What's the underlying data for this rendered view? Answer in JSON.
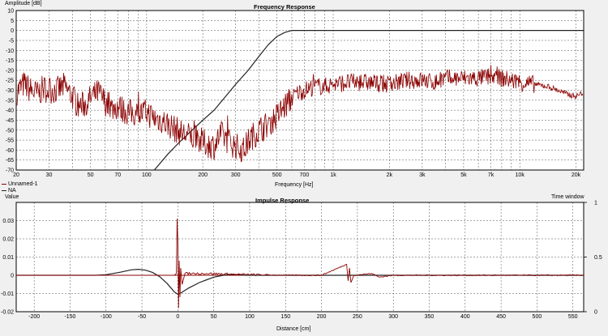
{
  "top": {
    "title": "Frequency Response",
    "ylabel": "Amplitude [dB]",
    "xlabel": "Frequency [Hz]",
    "legend": [
      {
        "name": "Unnamed-1",
        "color": "#8b0000"
      },
      {
        "name": "NA",
        "color": "#222222"
      }
    ]
  },
  "bottom": {
    "title": "Impulse Response",
    "ylabel": "Value",
    "xlabel": "Distance [cm]",
    "right_label": "Time window"
  },
  "colors": {
    "measurement": "#8b0000",
    "window": "#222222",
    "grid": "#000000",
    "plot_bg": "#ffffff",
    "frame_bg": "#f0f0f0"
  },
  "chart_data": [
    {
      "type": "line",
      "title": "Frequency Response",
      "xlabel": "Frequency [Hz]",
      "ylabel": "Amplitude [dB]",
      "x_scale": "log",
      "xlim": [
        20,
        22000
      ],
      "ylim": [
        -70,
        10
      ],
      "xticks": [
        20,
        30,
        50,
        70,
        100,
        200,
        300,
        500,
        700,
        1000,
        2000,
        3000,
        5000,
        7000,
        10000,
        20000
      ],
      "xtick_labels": [
        "20",
        "30",
        "50",
        "70",
        "100",
        "200",
        "300",
        "500",
        "700",
        "1k",
        "2k",
        "3k",
        "5k",
        "7k",
        "10k",
        "20k"
      ],
      "yticks": [
        10,
        5,
        0,
        -5,
        -10,
        -15,
        -20,
        -25,
        -30,
        -35,
        -40,
        -45,
        -50,
        -55,
        -60,
        -65,
        -70
      ],
      "grid": true,
      "legend_position": "bottom-left",
      "series": [
        {
          "name": "Unnamed-1",
          "x": [
            20,
            22,
            24,
            26,
            28,
            30,
            33,
            36,
            40,
            43,
            47,
            50,
            55,
            60,
            65,
            70,
            75,
            80,
            90,
            100,
            110,
            120,
            135,
            150,
            170,
            190,
            210,
            230,
            250,
            270,
            300,
            330,
            360,
            400,
            450,
            500,
            550,
            600,
            650,
            700,
            800,
            900,
            1000,
            1200,
            1500,
            2000,
            2500,
            3000,
            3500,
            4000,
            5000,
            6000,
            7000,
            8000,
            10000,
            12000,
            14000,
            16000,
            18000,
            20000,
            22000
          ],
          "y": [
            -31,
            -27,
            -30,
            -32,
            -29,
            -30,
            -30,
            -28,
            -33,
            -38,
            -37,
            -34,
            -31,
            -36,
            -39,
            -38,
            -40,
            -41,
            -42,
            -41,
            -44,
            -45,
            -48,
            -51,
            -53,
            -55,
            -57,
            -58,
            -52,
            -55,
            -58,
            -60,
            -54,
            -50,
            -47,
            -43,
            -38,
            -34,
            -31,
            -30,
            -28,
            -28,
            -27,
            -26,
            -26,
            -27,
            -25,
            -25,
            -26,
            -24,
            -24,
            -24,
            -23,
            -24,
            -26,
            -27,
            -28,
            -30,
            -32,
            -33,
            -31
          ]
        },
        {
          "name": "NA",
          "x": [
            110,
            130,
            150,
            180,
            200,
            230,
            260,
            300,
            350,
            400,
            450,
            500,
            550,
            600,
            650,
            700,
            1000,
            2000,
            5000,
            10000,
            22000
          ],
          "y": [
            -70,
            -62,
            -56,
            -49,
            -45,
            -40,
            -34,
            -27,
            -20,
            -13,
            -7,
            -3,
            -1,
            0,
            0,
            0,
            0,
            0,
            0,
            0,
            0
          ]
        }
      ]
    },
    {
      "type": "line",
      "title": "Impulse Response",
      "xlabel": "Distance [cm]",
      "ylabel": "Value",
      "xlim": [
        -225,
        565
      ],
      "ylim": [
        -0.02,
        0.04
      ],
      "xticks": [
        -200,
        -150,
        -100,
        -50,
        0,
        50,
        100,
        150,
        200,
        250,
        300,
        350,
        400,
        450,
        500,
        550
      ],
      "yticks": [
        0.03,
        0.02,
        0.01,
        0,
        -0.01,
        -0.02
      ],
      "secondary_axis": {
        "label": "Time window",
        "ticks": [
          1,
          0.5,
          0
        ]
      },
      "grid": true,
      "series": [
        {
          "name": "Unnamed-1",
          "x": [
            -225,
            -5,
            -2,
            -1,
            0,
            1,
            2,
            3,
            4,
            6,
            10,
            20,
            40,
            80,
            150,
            200,
            235,
            237,
            239,
            241,
            245,
            270,
            280,
            300,
            350,
            400,
            450,
            500,
            565
          ],
          "y": [
            0,
            0,
            0.001,
            0.031,
            0.018,
            -0.018,
            0.008,
            -0.012,
            0.004,
            -0.005,
            0.001,
            0.001,
            0.001,
            0.0005,
            0,
            0,
            0.006,
            -0.003,
            0.004,
            -0.004,
            0,
            0.001,
            -0.001,
            0,
            0,
            0,
            0,
            0,
            0
          ]
        },
        {
          "name": "NA",
          "x": [
            -225,
            -115,
            -100,
            -80,
            -65,
            -55,
            -45,
            -35,
            -25,
            -15,
            -5,
            0,
            5,
            15,
            30,
            50,
            70,
            85,
            95,
            110,
            565
          ],
          "y": [
            0,
            0,
            0.0003,
            0.0017,
            0.003,
            0.0033,
            0.0028,
            0.0015,
            -0.0008,
            -0.0045,
            -0.009,
            -0.0105,
            -0.0095,
            -0.007,
            -0.004,
            -0.001,
            0.0005,
            0.0004,
            0,
            0,
            0
          ]
        }
      ]
    }
  ]
}
